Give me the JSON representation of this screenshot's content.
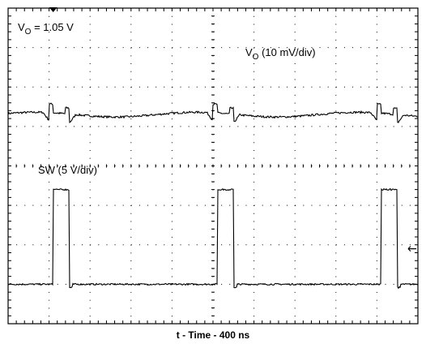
{
  "chart_data": {
    "type": "line",
    "xlabel": "t - Time - 400 ns",
    "grid": true,
    "divisions": {
      "x": 10,
      "y": 8
    },
    "xlim": [
      0,
      10
    ],
    "ylim": [
      0,
      8
    ],
    "x_unit": "div",
    "y_unit": "div",
    "annotations": {
      "vo_setting": {
        "main": "V",
        "sub": "O",
        "rest": " = 1.05 V"
      },
      "vo_scale": {
        "main": "V",
        "sub": "O",
        "rest": " (10 mV/div)"
      },
      "sw_scale": "SW (5 V/div)"
    },
    "series": [
      {
        "key": "vo",
        "color": "#000000",
        "baseline_div": 5.3,
        "transients_div": [
          1.0,
          5.0,
          9.0
        ]
      },
      {
        "key": "sw",
        "color": "#000000",
        "low_div": 1.0,
        "high_div": 3.4,
        "pulses_div": [
          [
            1.1,
            1.5
          ],
          [
            5.1,
            5.5
          ],
          [
            9.1,
            9.5
          ]
        ]
      }
    ],
    "markers": {
      "trigger": "top-left",
      "level": "right"
    }
  }
}
